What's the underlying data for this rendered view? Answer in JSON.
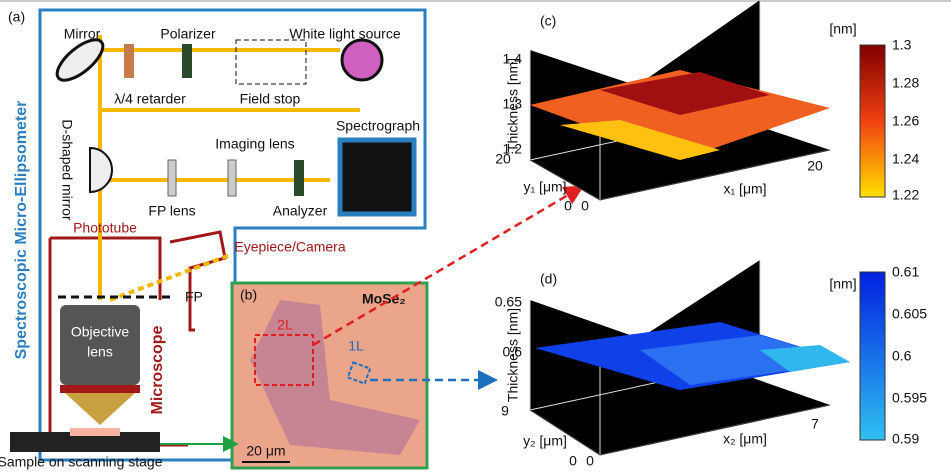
{
  "panel_a": {
    "label": "(a)",
    "title": "Spectroscopic Micro-Ellipsometer",
    "mirror": "Mirror",
    "polarizer": "Polarizer",
    "light_source": "White light source",
    "retarder": "λ/4 retarder",
    "field_stop": "Field stop",
    "d_mirror": "D-shaped mirror",
    "imaging_lens": "Imaging lens",
    "spectrograph": "Spectrograph",
    "fp_lens": "FP lens",
    "analyzer": "Analyzer",
    "phototube": "Phototube",
    "eyepiece": "Eyepiece/Camera",
    "fp": "FP",
    "objective": [
      "Objective",
      "lens"
    ],
    "microscope": "Microscope",
    "sample": "Sample on scanning stage"
  },
  "panel_b": {
    "label": "(b)",
    "material": "MoSe₂",
    "region_2l": "2L",
    "region_1l": "1L",
    "scale_bar": "20 μm"
  },
  "panel_c": {
    "label": "(c)",
    "z_label": "Thickness [nm]",
    "x_label": "x₁ [μm]",
    "y_label": "y₁ [μm]",
    "zticks": [
      "1.2",
      "1.3",
      "1.4"
    ],
    "x_ticks": [
      "0",
      "20"
    ],
    "y_ticks": [
      "0",
      "20"
    ],
    "colorbar": {
      "unit": "[nm]",
      "ticks": [
        "1.3",
        "1.28",
        "1.26",
        "1.24",
        "1.22"
      ]
    }
  },
  "panel_d": {
    "label": "(d)",
    "z_label": "Thickness [nm]",
    "x_label": "x₂ [μm]",
    "y_label": "y₂ [μm]",
    "zticks": [
      "0.6",
      "0.65"
    ],
    "x_ticks": [
      "0",
      "7"
    ],
    "y_ticks": [
      "0",
      "9"
    ],
    "colorbar": {
      "unit": "[nm]",
      "ticks": [
        "0.61",
        "0.605",
        "0.6",
        "0.595",
        "0.59"
      ]
    }
  }
}
